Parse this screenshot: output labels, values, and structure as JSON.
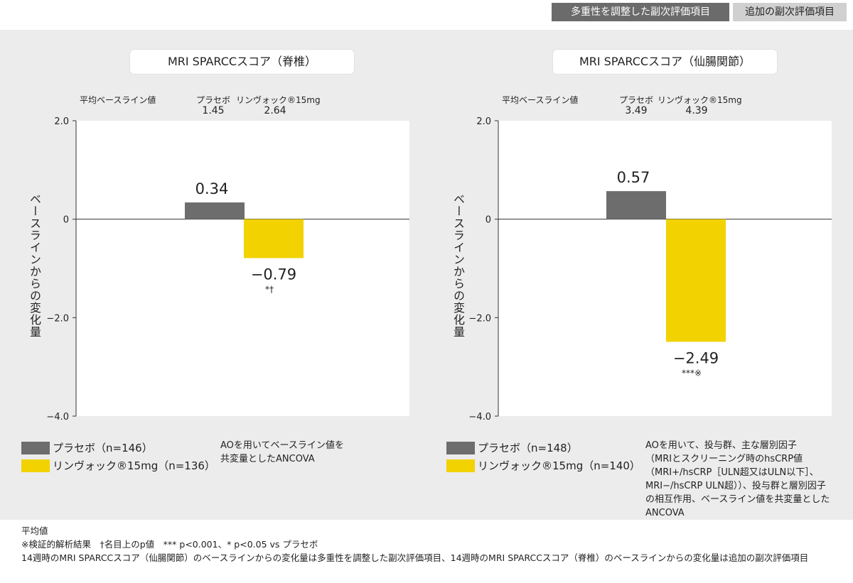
{
  "header": {
    "primary_tag": "多重性を調整した副次評価項目",
    "secondary_tag": "追加の副次評価項目"
  },
  "panels": [
    {
      "title": "MRI SPARCCスコア（脊椎）",
      "baseline_label": "平均ベースライン値",
      "baseline": [
        {
          "name": "プラセボ",
          "value": "1.45"
        },
        {
          "name": "リンヴォック®15mg",
          "value": "2.64"
        }
      ],
      "ylabel": "ベースラインからの変化量",
      "legend": [
        "プラセボ（n=146）",
        "リンヴォック®15mg（n=136）"
      ],
      "note": [
        "AOを用いてベースライン値を",
        "共変量としたANCOVA"
      ]
    },
    {
      "title": "MRI SPARCCスコア（仙腸関節）",
      "baseline_label": "平均ベースライン値",
      "baseline": [
        {
          "name": "プラセボ",
          "value": "3.49"
        },
        {
          "name": "リンヴォック®15mg",
          "value": "4.39"
        }
      ],
      "ylabel": "ベースラインからの変化量",
      "legend": [
        "プラセボ（n=148）",
        "リンヴォック®15mg（n=140）"
      ],
      "note": [
        "AOを用いて、投与群、主な層別因子",
        "（MRIとスクリーニング時のhsCRP値",
        "（MRI+/hsCRP［ULN超又はULN以下］、",
        "MRI−/hsCRP ULN超））、投与群と層別因子",
        "の相互作用、ベースライン値を共変量とした",
        "ANCOVA"
      ]
    }
  ],
  "chart_data": [
    {
      "type": "bar",
      "title": "MRI SPARCCスコア（脊椎）",
      "categories": [
        "プラセボ",
        "リンヴォック®15mg"
      ],
      "values": [
        0.34,
        -0.79
      ],
      "value_labels": [
        "0.34",
        "−0.79"
      ],
      "significance": [
        "",
        "*†"
      ],
      "ylim": [
        -4.0,
        2.0
      ],
      "yticks": [
        2.0,
        0,
        -2.0,
        -4.0
      ],
      "ytick_labels": [
        "2.0",
        "0",
        "−2.0",
        "−4.0"
      ],
      "colors": [
        "#6d6d6d",
        "#f2d200"
      ],
      "grid": false
    },
    {
      "type": "bar",
      "title": "MRI SPARCCスコア（仙腸関節）",
      "categories": [
        "プラセボ",
        "リンヴォック®15mg"
      ],
      "values": [
        0.57,
        -2.49
      ],
      "value_labels": [
        "0.57",
        "−2.49"
      ],
      "significance": [
        "",
        "***※"
      ],
      "ylim": [
        -4.0,
        2.0
      ],
      "yticks": [
        2.0,
        0,
        -2.0,
        -4.0
      ],
      "ytick_labels": [
        "2.0",
        "0",
        "−2.0",
        "−4.0"
      ],
      "colors": [
        "#6d6d6d",
        "#f2d200"
      ],
      "grid": false
    }
  ],
  "footer": [
    "平均値",
    "※検証的解析結果　†名目上のp値　*** p<0.001、* p<0.05 vs プラセボ",
    "14週時のMRI SPARCCスコア（仙腸関節）のベースラインからの変化量は多重性を調整した副次評価項目、14週時のMRI SPARCCスコア（脊椎）のベースラインからの変化量は追加の副次評価項目"
  ]
}
